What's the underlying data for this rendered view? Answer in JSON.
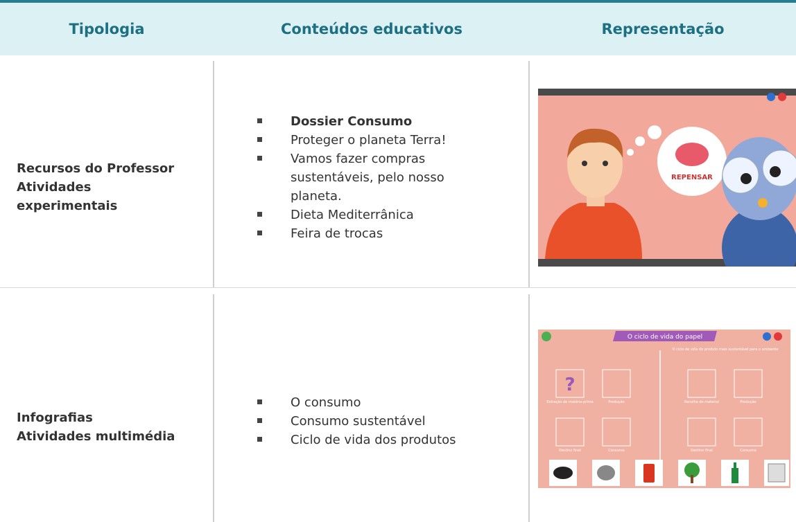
{
  "header": {
    "columns": [
      "Tipologia",
      "Conteúdos educativos",
      "Representação"
    ]
  },
  "rows": [
    {
      "typology": [
        "Recursos do Professor",
        "Atividades",
        "experimentais"
      ],
      "contents": [
        "Dossier Consumo",
        "Proteger o planeta Terra!",
        "Vamos fazer compras",
        "sustentáveis, pelo nosso",
        "planeta.",
        "Dieta Mediterrânica",
        "Feira de trocas"
      ],
      "image": {
        "label": "REPENSAR"
      }
    },
    {
      "typology": [
        "Infografias",
        "Atividades multimédia"
      ],
      "contents": [
        "O consumo",
        "Consumo sustentável",
        "Ciclo de vida dos produtos"
      ],
      "image": {
        "title": "O ciclo de vida do papel",
        "subtitle": "O ciclo de vida do produto mais sustentável para o ambiente",
        "labels": [
          "Extração de matéria-prima",
          "Produção",
          "Destino final",
          "Consumo",
          "Recolha do material",
          "Produção",
          "Destino final",
          "Consumo"
        ]
      }
    }
  ]
}
